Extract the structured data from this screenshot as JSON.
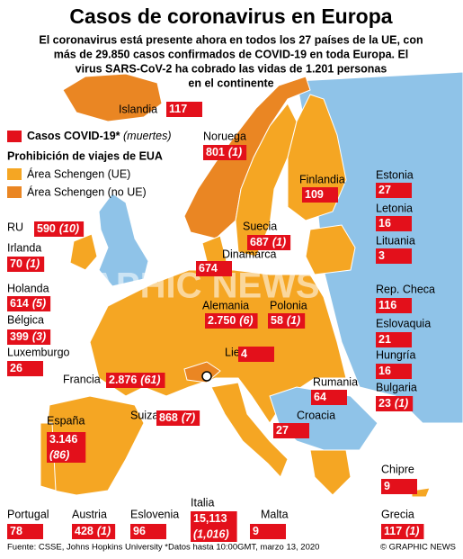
{
  "header": {
    "title": "Casos de coronavirus en Europa",
    "subtitle_lines": [
      "El coronavirus está presente ahora en todos los 27 países de la UE, con",
      "más de 29.850 casos confirmados de COVID-19 en toda Europa. El",
      "virus SARS-CoV-2 ha cobrado las vidas de 1.201 personas",
      "en el continente"
    ]
  },
  "legend": {
    "cases_label": "Casos COVID-19*",
    "deaths_label": "(muertes)",
    "ban_title": "Prohibición de viajes de EUA",
    "items": [
      "Área Schengen (UE)",
      "Área Schengen (no UE)"
    ]
  },
  "watermark": "GRAPHIC NEWS",
  "countries": [
    {
      "name": "Islandia",
      "cases": "117"
    },
    {
      "name": "Noruega",
      "cases": "801",
      "deaths": "(1)"
    },
    {
      "name": "Finlandia",
      "cases": "109"
    },
    {
      "name": "Estonia",
      "cases": "27"
    },
    {
      "name": "Letonia",
      "cases": "16"
    },
    {
      "name": "Lituania",
      "cases": "3"
    },
    {
      "name": "Suecia",
      "cases": "687",
      "deaths": "(1)"
    },
    {
      "name": "Dinamarca",
      "cases": "674"
    },
    {
      "name": "RU",
      "cases": "590",
      "deaths": "(10)"
    },
    {
      "name": "Irlanda",
      "cases": "70",
      "deaths": "(1)"
    },
    {
      "name": "Holanda",
      "cases": "614",
      "deaths": "(5)"
    },
    {
      "name": "Bélgica",
      "cases": "399",
      "deaths": "(3)"
    },
    {
      "name": "Luxemburgo",
      "cases": "26"
    },
    {
      "name": "Alemania",
      "cases": "2.750",
      "deaths": "(6)"
    },
    {
      "name": "Polonia",
      "cases": "58",
      "deaths": "(1)"
    },
    {
      "name": "Rep. Checa",
      "cases": "116"
    },
    {
      "name": "Eslovaquia",
      "cases": "21"
    },
    {
      "name": "Liecht.",
      "cases": "4"
    },
    {
      "name": "Hungría",
      "cases": "16"
    },
    {
      "name": "Francia",
      "cases": "2.876",
      "deaths": "(61)"
    },
    {
      "name": "Rumania",
      "cases": "64"
    },
    {
      "name": "Suiza",
      "cases": "868",
      "deaths": "(7)"
    },
    {
      "name": "Bulgaria",
      "cases": "23",
      "deaths": "(1)"
    },
    {
      "name": "España",
      "cases": "3.146",
      "deaths": "(86)"
    },
    {
      "name": "Croacia",
      "cases": "27"
    },
    {
      "name": "Chipre",
      "cases": "9"
    },
    {
      "name": "Portugal",
      "cases": "78"
    },
    {
      "name": "Austria",
      "cases": "428",
      "deaths": "(1)"
    },
    {
      "name": "Eslovenia",
      "cases": "96"
    },
    {
      "name": "Italia",
      "cases": "15,113",
      "deaths": "(1,016)"
    },
    {
      "name": "Malta",
      "cases": "9"
    },
    {
      "name": "Grecia",
      "cases": "117",
      "deaths": "(1)"
    }
  ],
  "footer": {
    "source": "Fuente: CSSE, Johns Hopkins University *Datos hasta 10:00GMT, marzo 13, 2020",
    "credit": "© GRAPHIC NEWS"
  }
}
